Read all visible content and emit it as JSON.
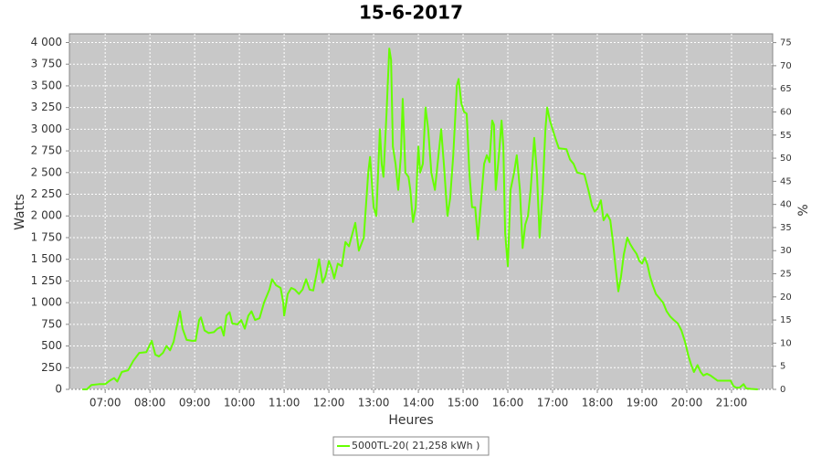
{
  "chart_data": {
    "type": "line",
    "title": "15-6-2017",
    "xlabel": "Heures",
    "ylabel": "Watts",
    "y2label": "%",
    "xlim": [
      6.2,
      21.92
    ],
    "ylim": [
      0,
      4100
    ],
    "y2lim": [
      0,
      76.9
    ],
    "xticks": [
      {
        "value": 7,
        "label": "07:00"
      },
      {
        "value": 8,
        "label": "08:00"
      },
      {
        "value": 9,
        "label": "09:00"
      },
      {
        "value": 10,
        "label": "10:00"
      },
      {
        "value": 11,
        "label": "11:00"
      },
      {
        "value": 12,
        "label": "12:00"
      },
      {
        "value": 13,
        "label": "13:00"
      },
      {
        "value": 14,
        "label": "14:00"
      },
      {
        "value": 15,
        "label": "15:00"
      },
      {
        "value": 16,
        "label": "16:00"
      },
      {
        "value": 17,
        "label": "17:00"
      },
      {
        "value": 18,
        "label": "18:00"
      },
      {
        "value": 19,
        "label": "19:00"
      },
      {
        "value": 20,
        "label": "20:00"
      },
      {
        "value": 21,
        "label": "21:00"
      }
    ],
    "yticks": [
      0,
      250,
      500,
      750,
      {
        "value": 1000,
        "label": "1 000"
      },
      {
        "value": 1250,
        "label": "1 250"
      },
      {
        "value": 1500,
        "label": "1 500"
      },
      {
        "value": 1750,
        "label": "1 750"
      },
      {
        "value": 2000,
        "label": "2 000"
      },
      {
        "value": 2250,
        "label": "2 250"
      },
      {
        "value": 2500,
        "label": "2 500"
      },
      {
        "value": 2750,
        "label": "2 750"
      },
      {
        "value": 3000,
        "label": "3 000"
      },
      {
        "value": 3250,
        "label": "3 250"
      },
      {
        "value": 3500,
        "label": "3 500"
      },
      {
        "value": 3750,
        "label": "3 750"
      },
      {
        "value": 4000,
        "label": "4 000"
      }
    ],
    "y2ticks": [
      0,
      5,
      10,
      15,
      20,
      25,
      30,
      35,
      40,
      45,
      50,
      55,
      60,
      65,
      70,
      75
    ],
    "grid": true,
    "legend": "bottom",
    "x": [
      6.49,
      6.59,
      6.69,
      6.86,
      7.0,
      7.1,
      7.2,
      7.27,
      7.37,
      7.51,
      7.63,
      7.76,
      7.92,
      8.04,
      8.12,
      8.2,
      8.29,
      8.37,
      8.45,
      8.53,
      8.63,
      8.67,
      8.73,
      8.82,
      8.94,
      9.02,
      9.1,
      9.14,
      9.22,
      9.31,
      9.43,
      9.51,
      9.59,
      9.65,
      9.71,
      9.78,
      9.84,
      9.96,
      10.04,
      10.12,
      10.2,
      10.27,
      10.35,
      10.45,
      10.55,
      10.63,
      10.67,
      10.73,
      10.82,
      10.92,
      10.98,
      11.0,
      11.08,
      11.16,
      11.24,
      11.33,
      11.41,
      11.49,
      11.57,
      11.65,
      11.73,
      11.78,
      11.86,
      11.92,
      12.0,
      12.06,
      12.12,
      12.2,
      12.29,
      12.37,
      12.45,
      12.59,
      12.67,
      12.78,
      12.88,
      12.92,
      13.0,
      13.06,
      13.14,
      13.18,
      13.22,
      13.29,
      13.35,
      13.39,
      13.43,
      13.49,
      13.55,
      13.61,
      13.65,
      13.71,
      13.78,
      13.82,
      13.88,
      13.94,
      14.0,
      14.04,
      14.1,
      14.16,
      14.22,
      14.29,
      14.37,
      14.45,
      14.51,
      14.57,
      14.65,
      14.71,
      14.78,
      14.86,
      14.9,
      14.96,
      15.02,
      15.08,
      15.14,
      15.2,
      15.27,
      15.33,
      15.39,
      15.47,
      15.53,
      15.59,
      15.65,
      15.69,
      15.73,
      15.8,
      15.86,
      15.9,
      15.94,
      16.0,
      16.06,
      16.14,
      16.2,
      16.27,
      16.33,
      16.39,
      16.45,
      16.51,
      16.59,
      16.65,
      16.71,
      16.78,
      16.84,
      16.88,
      16.94,
      17.0,
      17.06,
      17.14,
      17.31,
      17.39,
      17.47,
      17.55,
      17.71,
      17.8,
      17.88,
      17.94,
      18.0,
      18.08,
      18.14,
      18.22,
      18.29,
      18.35,
      18.41,
      18.47,
      18.53,
      18.59,
      18.67,
      18.73,
      18.8,
      18.88,
      18.94,
      19.0,
      19.06,
      19.12,
      19.18,
      19.24,
      19.31,
      19.39,
      19.47,
      19.55,
      19.63,
      19.71,
      19.8,
      19.88,
      19.96,
      20.04,
      20.1,
      20.16,
      20.24,
      20.31,
      20.37,
      20.45,
      20.53,
      20.61,
      20.69,
      20.88,
      20.98,
      21.04,
      21.1,
      21.18,
      21.27,
      21.33,
      21.43,
      21.59
    ],
    "series": [
      {
        "name": "5000TL-20( 21,258 kWh )",
        "color": "#66ff00",
        "values": [
          0,
          0,
          50,
          60,
          60,
          100,
          130,
          90,
          200,
          220,
          330,
          420,
          430,
          560,
          400,
          380,
          420,
          500,
          450,
          550,
          800,
          900,
          700,
          570,
          560,
          560,
          800,
          830,
          680,
          650,
          660,
          700,
          720,
          620,
          850,
          890,
          760,
          750,
          800,
          700,
          850,
          900,
          800,
          820,
          1000,
          1100,
          1150,
          1270,
          1200,
          1170,
          1000,
          850,
          1100,
          1170,
          1150,
          1100,
          1150,
          1270,
          1150,
          1140,
          1350,
          1500,
          1230,
          1300,
          1480,
          1400,
          1280,
          1450,
          1420,
          1700,
          1650,
          1920,
          1600,
          1750,
          2500,
          2680,
          2100,
          2000,
          3000,
          2600,
          2450,
          3200,
          3930,
          3800,
          2800,
          2600,
          2300,
          2700,
          3350,
          2500,
          2450,
          2300,
          1930,
          2100,
          2800,
          2500,
          2600,
          3250,
          3000,
          2500,
          2300,
          2700,
          3000,
          2600,
          2000,
          2200,
          2700,
          3500,
          3580,
          3300,
          3200,
          3180,
          2500,
          2100,
          2100,
          1730,
          2100,
          2600,
          2700,
          2620,
          3100,
          3050,
          2300,
          2700,
          3100,
          2800,
          1800,
          1420,
          2300,
          2500,
          2700,
          2300,
          1630,
          1900,
          2000,
          2300,
          2900,
          2500,
          1750,
          2300,
          3000,
          3250,
          3100,
          3000,
          2900,
          2780,
          2770,
          2650,
          2600,
          2500,
          2480,
          2300,
          2120,
          2050,
          2080,
          2180,
          1950,
          2020,
          1950,
          1700,
          1400,
          1130,
          1300,
          1550,
          1750,
          1680,
          1620,
          1560,
          1480,
          1450,
          1520,
          1440,
          1300,
          1200,
          1100,
          1050,
          1000,
          900,
          840,
          800,
          760,
          680,
          550,
          380,
          280,
          200,
          280,
          200,
          160,
          180,
          160,
          130,
          100,
          100,
          100,
          40,
          20,
          20,
          60,
          10,
          5,
          0
        ]
      }
    ]
  }
}
